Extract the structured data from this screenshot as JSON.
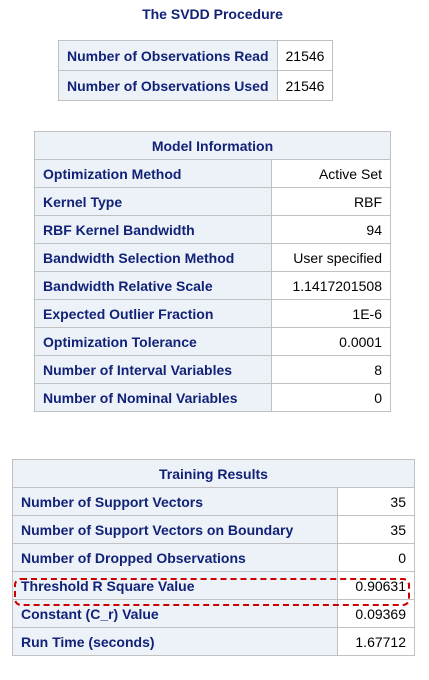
{
  "procedure_title": "The SVDD Procedure",
  "observations": [
    {
      "label": "Number of Observations Read",
      "value": "21546"
    },
    {
      "label": "Number of Observations Used",
      "value": "21546"
    }
  ],
  "model_information": {
    "caption": "Model Information",
    "rows": [
      {
        "label": "Optimization Method",
        "value": "Active Set"
      },
      {
        "label": "Kernel Type",
        "value": "RBF"
      },
      {
        "label": "RBF Kernel Bandwidth",
        "value": "94"
      },
      {
        "label": "Bandwidth Selection Method",
        "value": "User specified"
      },
      {
        "label": "Bandwidth Relative Scale",
        "value": "1.1417201508"
      },
      {
        "label": "Expected Outlier Fraction",
        "value": "1E-6"
      },
      {
        "label": "Optimization Tolerance",
        "value": "0.0001"
      },
      {
        "label": "Number of Interval Variables",
        "value": "8"
      },
      {
        "label": "Number of Nominal Variables",
        "value": "0"
      }
    ]
  },
  "training_results": {
    "caption": "Training Results",
    "rows": [
      {
        "label": "Number of Support Vectors",
        "value": "35"
      },
      {
        "label": "Number of Support Vectors on Boundary",
        "value": "35"
      },
      {
        "label": "Number of Dropped Observations",
        "value": "0"
      },
      {
        "label": "Threshold R Square Value",
        "value": "0.90631"
      },
      {
        "label": "Constant (C_r) Value",
        "value": "0.09369"
      },
      {
        "label": "Run Time (seconds)",
        "value": "1.67712"
      }
    ],
    "highlighted_row": "Threshold R Square Value",
    "highlight_color": "#cc0000"
  }
}
